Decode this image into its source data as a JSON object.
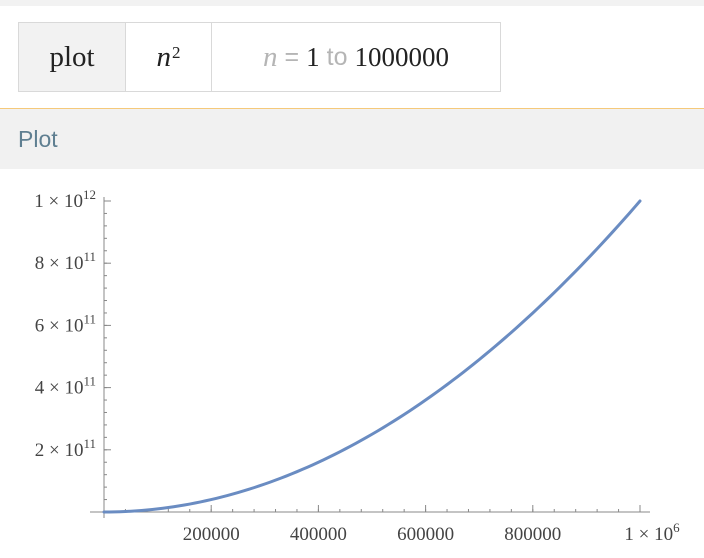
{
  "input": {
    "function_label": "plot",
    "expression": {
      "variable": "n",
      "exponent": "2"
    },
    "range": {
      "variable": "n",
      "equals": "=",
      "from": "1",
      "to_word": "to",
      "to": "1000000"
    }
  },
  "pod": {
    "title": "Plot"
  },
  "colors": {
    "curve": "#6a8cc2",
    "axis": "#888888",
    "pod_accent": "#f5c97a",
    "pod_title": "#5f7f91"
  },
  "chart_data": {
    "type": "line",
    "series": [
      {
        "x": [
          0,
          100000,
          200000,
          300000,
          400000,
          500000,
          600000,
          700000,
          800000,
          900000,
          1000000
        ],
        "y": [
          0,
          10000000000,
          40000000000,
          90000000000,
          160000000000,
          250000000000,
          360000000000,
          490000000000,
          640000000000,
          810000000000,
          1000000000000
        ]
      }
    ],
    "xlim": [
      0,
      1000000
    ],
    "ylim": [
      0,
      1000000000000
    ],
    "x_ticks": [
      {
        "value": 200000,
        "label": "200000"
      },
      {
        "value": 400000,
        "label": "400000"
      },
      {
        "value": 600000,
        "label": "600000"
      },
      {
        "value": 800000,
        "label": "800000"
      },
      {
        "value": 1000000,
        "label": "1 × 10",
        "exp": "6"
      }
    ],
    "y_ticks": [
      {
        "value": 200000000000,
        "mant": "2 × 10",
        "exp": "11"
      },
      {
        "value": 400000000000,
        "mant": "4 × 10",
        "exp": "11"
      },
      {
        "value": 600000000000,
        "mant": "6 × 10",
        "exp": "11"
      },
      {
        "value": 800000000000,
        "mant": "8 × 10",
        "exp": "11"
      },
      {
        "value": 1000000000000,
        "mant": "1 × 10",
        "exp": "12"
      }
    ],
    "grid": false
  }
}
